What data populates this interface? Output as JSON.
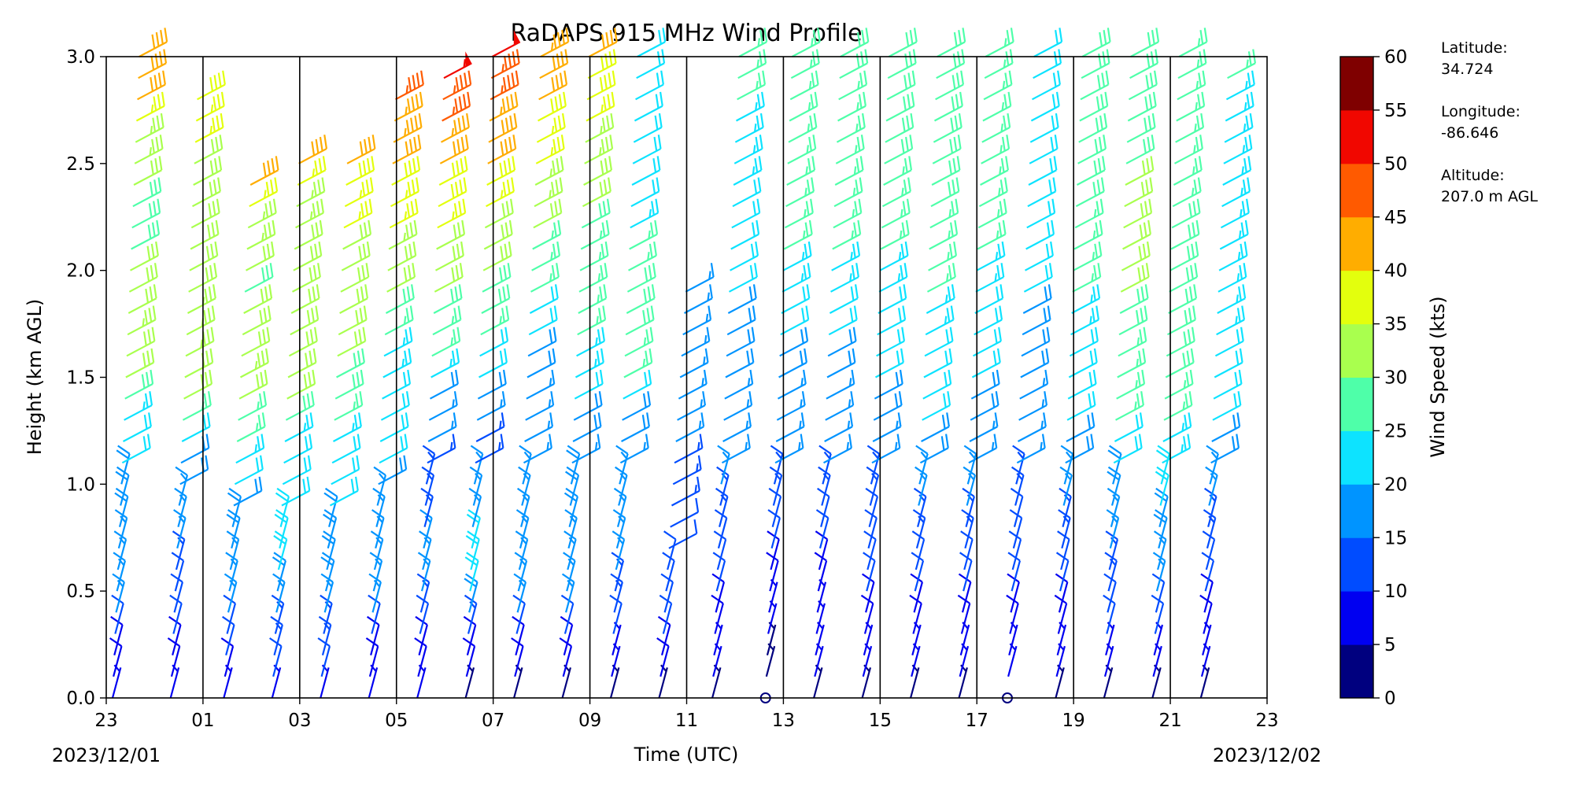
{
  "chart_data": {
    "type": "wind_barb_profile",
    "title": "RaDAPS 915 MHz Wind Profile",
    "xlabel": "Time (UTC)",
    "ylabel": "Height (km AGL)",
    "x_tick_labels": [
      "23",
      "01",
      "03",
      "05",
      "07",
      "09",
      "11",
      "13",
      "15",
      "17",
      "19",
      "21",
      "23"
    ],
    "x_tick_hours": [
      -1,
      1,
      3,
      5,
      7,
      9,
      11,
      13,
      15,
      17,
      19,
      21,
      23
    ],
    "xlim_hours": [
      -1,
      23
    ],
    "y_tick_labels": [
      "0.0",
      "0.5",
      "1.0",
      "1.5",
      "2.0",
      "2.5",
      "3.0"
    ],
    "y_ticks_km": [
      0.0,
      0.5,
      1.0,
      1.5,
      2.0,
      2.5,
      3.0
    ],
    "ylim_km": [
      0.0,
      3.0
    ],
    "start_date_label": "2023/12/01",
    "end_date_label": "2023/12/02",
    "vertical_lines_hours": [
      1,
      3,
      5,
      7,
      9,
      11,
      13,
      15,
      17,
      19,
      21
    ],
    "colorbar": {
      "label": "Wind Speed (kts)",
      "tick_labels": [
        "0",
        "5",
        "10",
        "15",
        "20",
        "25",
        "30",
        "35",
        "40",
        "45",
        "50",
        "55",
        "60"
      ],
      "ticks": [
        0,
        5,
        10,
        15,
        20,
        25,
        30,
        35,
        40,
        45,
        50,
        55,
        60
      ],
      "colors": [
        "#00007f",
        "#0000f1",
        "#004cff",
        "#0094ff",
        "#0de3ff",
        "#4effa9",
        "#a9ff4e",
        "#e3ff0d",
        "#ffad00",
        "#ff5a00",
        "#f10700",
        "#7f0000"
      ]
    },
    "station": {
      "latitude_label": "Latitude:",
      "latitude_value": "34.724",
      "longitude_label": "Longitude:",
      "longitude_value": "-86.646",
      "altitude_label": "Altitude:",
      "altitude_value": "207.0 m AGL"
    },
    "profile_columns": [
      {
        "start_hour": -1.0,
        "speed_kts": [
          5,
          8,
          12,
          15,
          16,
          17,
          18,
          19,
          22,
          24,
          28,
          32,
          33,
          31,
          30,
          29,
          28,
          31,
          34,
          37,
          40,
          40
        ],
        "top_km": 3.0
      },
      {
        "start_hour": 0.2,
        "speed_kts": [
          5,
          8,
          10,
          12,
          14,
          15,
          16,
          18,
          22,
          26,
          30,
          33,
          34,
          32,
          31,
          30,
          30,
          32,
          36,
          38
        ],
        "top_km": 2.8
      },
      {
        "start_hour": 1.3,
        "speed_kts": [
          5,
          9,
          12,
          15,
          16,
          17,
          18,
          19,
          20,
          23,
          27,
          31,
          33,
          32,
          30,
          29,
          30,
          33,
          37,
          40
        ],
        "top_km": 2.4
      },
      {
        "start_hour": 2.3,
        "speed_kts": [
          5,
          10,
          14,
          17,
          19,
          20,
          20,
          21,
          22,
          24,
          28,
          31,
          32,
          31,
          30,
          30,
          31,
          34,
          37,
          40
        ],
        "top_km": 2.5
      },
      {
        "start_hour": 3.3,
        "speed_kts": [
          5,
          10,
          14,
          17,
          18,
          18,
          19,
          20,
          22,
          23,
          26,
          29,
          31,
          30,
          30,
          31,
          32,
          35,
          38,
          42
        ],
        "top_km": 2.45
      },
      {
        "start_hour": 4.3,
        "speed_kts": [
          5,
          9,
          12,
          15,
          16,
          16,
          17,
          18,
          20,
          20,
          21,
          24,
          27,
          29,
          31,
          33,
          36,
          39,
          42,
          44,
          47
        ],
        "top_km": 2.75
      },
      {
        "start_hour": 5.3,
        "speed_kts": [
          5,
          8,
          11,
          14,
          15,
          15,
          14,
          13,
          14,
          16,
          19,
          23,
          26,
          28,
          30,
          32,
          35,
          38,
          41,
          44,
          47,
          53
        ],
        "top_km": 2.85
      },
      {
        "start_hour": 6.3,
        "speed_kts": [
          4,
          9,
          14,
          18,
          20,
          20,
          17,
          15,
          14,
          16,
          19,
          22,
          25,
          28,
          30,
          32,
          35,
          38,
          41,
          44,
          47,
          50
        ],
        "top_km": 2.95
      },
      {
        "start_hour": 7.3,
        "speed_kts": [
          4,
          8,
          12,
          15,
          17,
          17,
          16,
          15,
          15,
          16,
          19,
          22,
          25,
          27,
          30,
          33,
          36,
          38,
          40,
          43
        ],
        "top_km": 3.0
      },
      {
        "start_hour": 8.3,
        "speed_kts": [
          4,
          8,
          12,
          15,
          17,
          18,
          18,
          17,
          18,
          20,
          23,
          26,
          27,
          27,
          28,
          30,
          33,
          36,
          39,
          40
        ],
        "top_km": 3.0
      },
      {
        "start_hour": 9.3,
        "speed_kts": [
          3,
          7,
          11,
          14,
          15,
          16,
          16,
          17,
          19,
          22,
          25,
          28,
          28,
          26,
          24,
          22,
          21,
          20,
          20,
          21
        ],
        "top_km": 3.0
      },
      {
        "start_hour": 10.3,
        "speed_kts": [
          3,
          8,
          10,
          11,
          12,
          12,
          12,
          13,
          14,
          15,
          16,
          17,
          17,
          16,
          15
        ],
        "top_km": 1.85
      },
      {
        "start_hour": 11.4,
        "speed_kts": [
          3,
          5,
          8,
          10,
          12,
          14,
          15,
          16,
          17,
          18,
          19,
          20,
          21,
          22,
          23,
          24,
          25,
          26
        ],
        "top_km": 3.0
      },
      {
        "start_hour": 12.5,
        "speed_kts": [
          2,
          4,
          7,
          9,
          11,
          13,
          15,
          17,
          19,
          21,
          23,
          25,
          26,
          27,
          27,
          27
        ],
        "top_km": 3.0
      },
      {
        "start_hour": 13.5,
        "speed_kts": [
          3,
          5,
          7,
          9,
          11,
          13,
          15,
          17,
          19,
          21,
          23,
          25,
          26,
          27,
          27,
          28
        ],
        "top_km": 3.0
      },
      {
        "start_hour": 14.5,
        "speed_kts": [
          4,
          6,
          8,
          10,
          12,
          14,
          16,
          18,
          20,
          22,
          24,
          26,
          27,
          28,
          28,
          28
        ],
        "top_km": 3.0
      },
      {
        "start_hour": 15.5,
        "speed_kts": [
          4,
          6,
          9,
          12,
          14,
          16,
          18,
          20,
          22,
          24,
          26,
          27,
          28,
          29,
          29,
          29
        ],
        "top_km": 3.0
      },
      {
        "start_hour": 16.5,
        "speed_kts": [
          3,
          5,
          8,
          11,
          13,
          15,
          17,
          18,
          20,
          22,
          24,
          25,
          26,
          26,
          26,
          26
        ],
        "top_km": 3.0
      },
      {
        "start_hour": 17.5,
        "speed_kts": [
          2,
          5,
          8,
          10,
          12,
          14,
          15,
          17,
          18,
          19,
          20,
          21,
          22,
          22,
          22,
          22
        ],
        "top_km": 3.0
      },
      {
        "start_hour": 18.5,
        "speed_kts": [
          3,
          6,
          9,
          12,
          14,
          16,
          18,
          20,
          22,
          24,
          26,
          27,
          28,
          28,
          28,
          28
        ],
        "top_km": 3.0
      },
      {
        "start_hour": 19.5,
        "speed_kts": [
          3,
          6,
          10,
          13,
          16,
          19,
          22,
          25,
          27,
          29,
          30,
          30,
          30,
          29,
          29,
          28
        ],
        "top_km": 3.0
      },
      {
        "start_hour": 20.5,
        "speed_kts": [
          4,
          7,
          11,
          15,
          18,
          21,
          24,
          26,
          28,
          29,
          29,
          28,
          27,
          27,
          27,
          27
        ],
        "top_km": 3.0
      },
      {
        "start_hour": 21.5,
        "speed_kts": [
          3,
          5,
          8,
          11,
          14,
          17,
          19,
          21,
          22,
          23,
          23,
          24,
          24,
          24,
          24,
          25
        ],
        "top_km": 2.9
      }
    ]
  }
}
